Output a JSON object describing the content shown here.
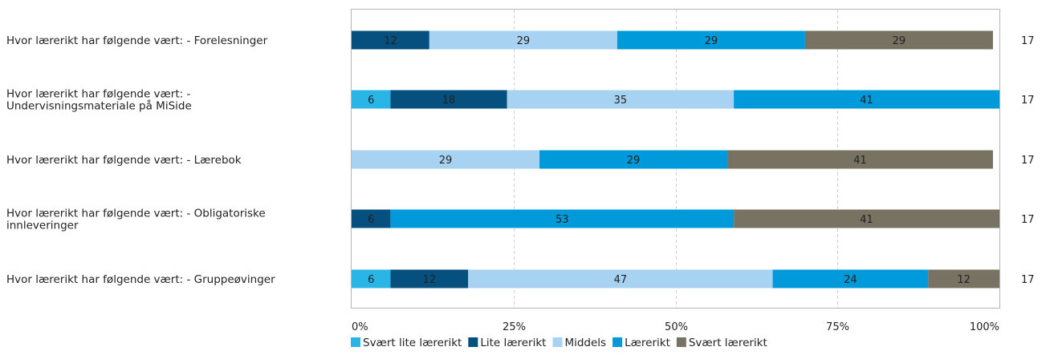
{
  "chart_data": {
    "type": "bar",
    "orientation": "horizontal",
    "stacked": true,
    "percent": true,
    "categories": [
      [
        "Hvor lærerikt har følgende vært: - Forelesninger"
      ],
      [
        "Hvor lærerikt har følgende vært: -",
        "Undervisningsmateriale på MiSide"
      ],
      [
        "Hvor lærerikt har følgende vært: - Lærebok"
      ],
      [
        "Hvor lærerikt har følgende vært: - Obligatoriske",
        "innleveringer"
      ],
      [
        "Hvor lærerikt har følgende vært: - Gruppeøvinger"
      ]
    ],
    "n": [
      "17",
      "17",
      "17",
      "17",
      "17"
    ],
    "series": [
      {
        "name": "Svært lite lærerikt",
        "color": "#29b6e6",
        "values": [
          0,
          6,
          0,
          0,
          6
        ]
      },
      {
        "name": "Lite lærerikt",
        "color": "#05507f",
        "values": [
          12,
          18,
          0,
          6,
          12
        ]
      },
      {
        "name": "Middels",
        "color": "#a8d2f2",
        "values": [
          29,
          35,
          29,
          0,
          47
        ]
      },
      {
        "name": "Lærerikt",
        "color": "#0099d9",
        "values": [
          29,
          41,
          29,
          53,
          24
        ]
      },
      {
        "name": "Svært lærerikt",
        "color": "#777261",
        "values": [
          29,
          0,
          41,
          41,
          12
        ]
      }
    ],
    "x_ticks": [
      "0%",
      "25%",
      "50%",
      "75%",
      "100%"
    ],
    "xlim": [
      0,
      100
    ],
    "grid": true,
    "legend_position": "bottom"
  }
}
